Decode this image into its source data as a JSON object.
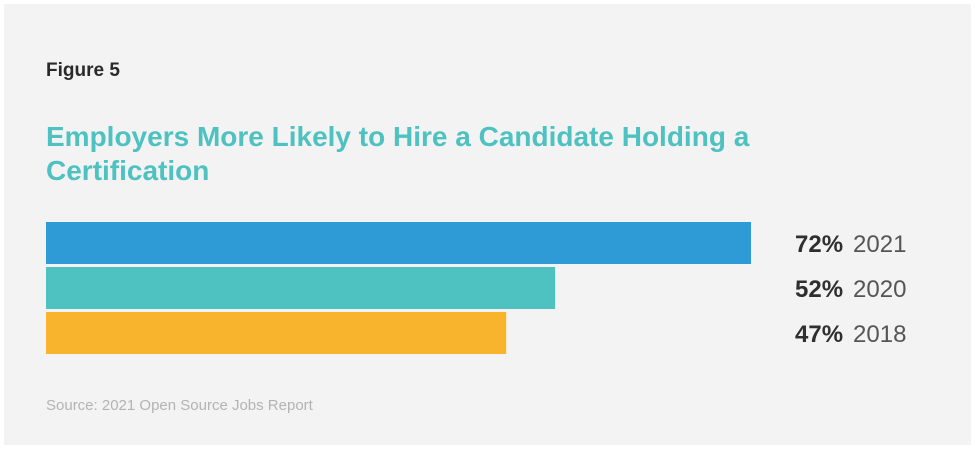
{
  "figure_label": "Figure 5",
  "source": "Source: 2021 Open Source Jobs Report",
  "chart_data": {
    "type": "bar",
    "orientation": "horizontal",
    "title": "Employers More Likely to Hire a Candidate Holding a Certification",
    "categories": [
      "2021",
      "2020",
      "2018"
    ],
    "values": [
      72,
      52,
      47
    ],
    "value_labels": [
      "72%",
      "52%",
      "47%"
    ],
    "colors": [
      "#2f9bd6",
      "#4ec2c0",
      "#f7b42c"
    ],
    "xlim": [
      0,
      72
    ],
    "grid": false,
    "legend": "none"
  }
}
